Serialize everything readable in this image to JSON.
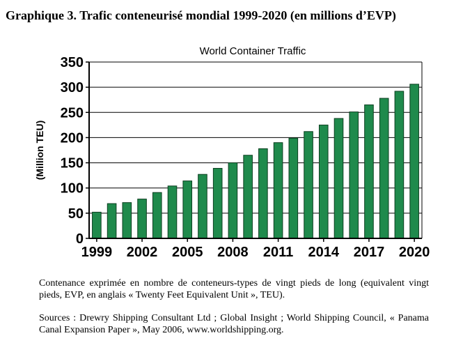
{
  "heading": "Graphique 3. Trafic conteneurisé mondial 1999-2020 (en millions d’EVP)",
  "caption_units": "Contenance exprimée en nombre de conteneurs-types de vingt pieds de long (equivalent vingt pieds, EVP, en anglais « Twenty Feet Equivalent Unit », TEU).",
  "caption_sources": "Sources : Drewry Shipping Consultant Ltd ; Global Insight ; World Shipping Council, « Panama Canal Expansion Paper », May 2006, www.worldshipping.org.",
  "colors": {
    "bar": "#1f8a4c",
    "bar_edge": "#0c3f20",
    "axis": "#000000",
    "grid": "#000000"
  },
  "chart_data": {
    "type": "bar",
    "title": "World Container Traffic",
    "ylabel": "(Million TEU)",
    "xlabel": "",
    "ylim": [
      0,
      350
    ],
    "yticks": [
      0,
      50,
      100,
      150,
      200,
      250,
      300,
      350
    ],
    "grid": true,
    "categories": [
      "1999",
      "2000",
      "2001",
      "2002",
      "2003",
      "2004",
      "2005",
      "2006",
      "2007",
      "2008",
      "2009",
      "2010",
      "2011",
      "2012",
      "2013",
      "2014",
      "2015",
      "2016",
      "2017",
      "2018",
      "2019",
      "2020"
    ],
    "xtick_labels": [
      "1999",
      "2002",
      "2005",
      "2008",
      "2011",
      "2014",
      "2017",
      "2020"
    ],
    "values": [
      52,
      69,
      71,
      78,
      91,
      104,
      114,
      127,
      139,
      150,
      165,
      178,
      190,
      199,
      212,
      225,
      238,
      251,
      265,
      278,
      292,
      306
    ]
  }
}
